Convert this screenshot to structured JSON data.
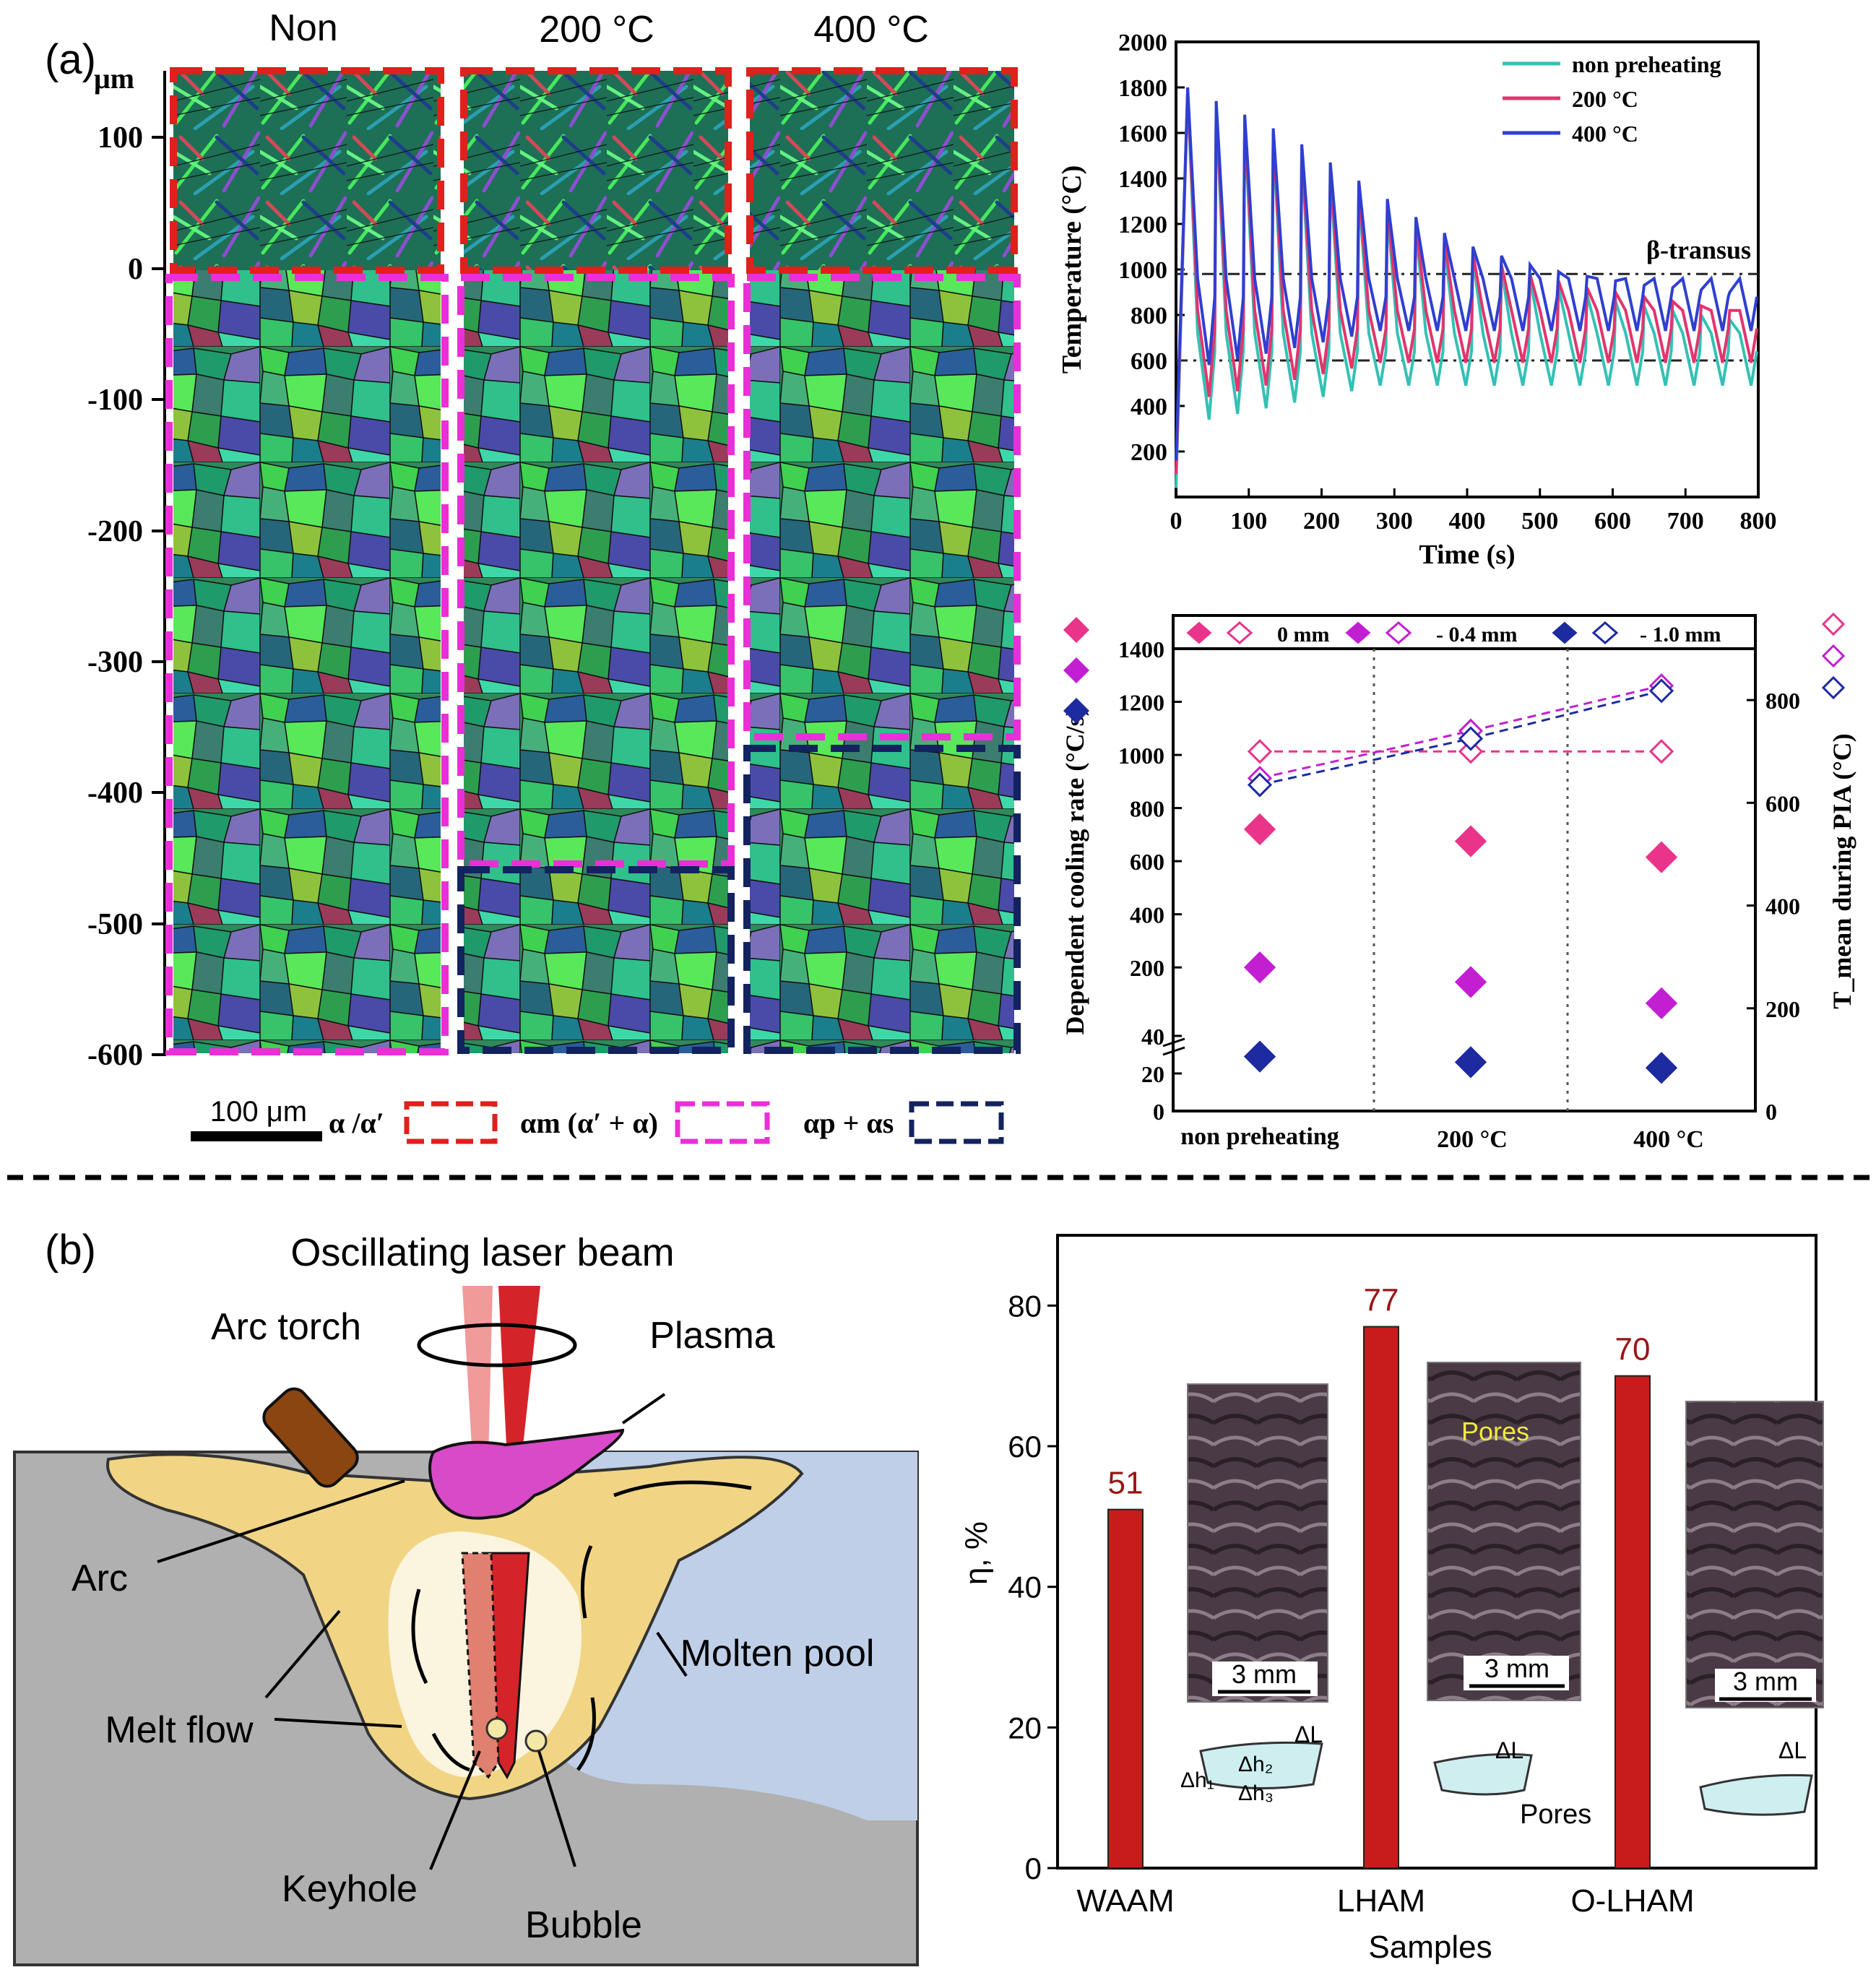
{
  "panel_a": {
    "label": "(a)",
    "micro": {
      "col_labels": [
        "Non",
        "200 °C",
        "400 °C"
      ],
      "axis_unit": "μm",
      "y_ticks": [
        "100",
        "0",
        "-100",
        "-200",
        "-300",
        "-400",
        "-500",
        "-600"
      ],
      "scale_bar": "100 μm",
      "legend": [
        {
          "label": "α /α′",
          "color": "#e0201c"
        },
        {
          "label": "αm (α′ + α)",
          "color": "#ea2fd6"
        },
        {
          "label": "αp + αs",
          "color": "#13235f"
        }
      ],
      "colors": {
        "grain_a": "#1f9a6a",
        "grain_b": "#3fd14f",
        "grain_c": "#2a5d9a",
        "grain_d": "#7a6fb8"
      }
    }
  },
  "panel_b": {
    "label": "(b)",
    "schematic": {
      "title": "Oscillating laser beam",
      "labels": {
        "arc_torch": "Arc torch",
        "plasma": "Plasma",
        "arc": "Arc",
        "melt_flow": "Melt flow",
        "molten_pool": "Molten pool",
        "keyhole": "Keyhole",
        "bubble": "Bubble"
      }
    },
    "insets": {
      "scale": "3 mm",
      "pores": "Pores",
      "pores_label": "Pores",
      "dh1": "Δh₁",
      "dh2": "Δh₂",
      "dh3": "Δh₃",
      "dl": "ΔL"
    }
  },
  "chart_data": [
    {
      "type": "line",
      "title": "",
      "xlabel": "Time (s)",
      "ylabel": "Temperature (°C)",
      "xlim": [
        0,
        800
      ],
      "ylim": [
        0,
        2000
      ],
      "x_ticks": [
        0,
        100,
        200,
        300,
        400,
        500,
        600,
        700,
        800
      ],
      "y_ticks": [
        200,
        400,
        600,
        800,
        1000,
        1200,
        1400,
        1600,
        1800,
        2000
      ],
      "annotation": "β-transus",
      "ref_lines": [
        980,
        600
      ],
      "legend": "top-right",
      "series": [
        {
          "name": "non preheating",
          "color": "#33c1b4",
          "peaks": [
            1780,
            1700,
            1640,
            1580,
            1500,
            1420,
            1340,
            1260,
            1180,
            1110,
            1050,
            1000,
            960,
            920,
            890,
            860,
            840,
            820,
            800,
            780
          ],
          "base": 250,
          "mid": 600
        },
        {
          "name": "200 °C",
          "color": "#e3346d",
          "peaks": [
            1790,
            1720,
            1660,
            1600,
            1520,
            1440,
            1360,
            1280,
            1200,
            1130,
            1070,
            1020,
            980,
            950,
            920,
            900,
            880,
            860,
            840,
            820
          ],
          "base": 400,
          "mid": 700
        },
        {
          "name": "400 °C",
          "color": "#2f3fd0",
          "peaks": [
            1800,
            1740,
            1680,
            1620,
            1550,
            1470,
            1390,
            1310,
            1230,
            1160,
            1100,
            1060,
            1020,
            990,
            970,
            950,
            930,
            920,
            910,
            900
          ],
          "base": 560,
          "mid": 840
        }
      ]
    },
    {
      "type": "scatter",
      "title": "",
      "categories": [
        "non preheating",
        "200 °C",
        "400 °C"
      ],
      "ylabel": "Dependent cooling rate (°C/s)",
      "y2label": "T_mean during PIA (°C)",
      "y_ticks": [
        "0",
        "20",
        "40",
        "200",
        "400",
        "600",
        "800",
        "1000",
        "1200",
        "1400"
      ],
      "y2_ticks": [
        "0",
        "200",
        "400",
        "600",
        "800"
      ],
      "legend_items": [
        "0 mm",
        "- 0.4 mm",
        "- 1.0 mm"
      ],
      "series": [
        {
          "name": "0 mm",
          "color": "#e9348a",
          "cooling_rate": [
            720,
            675,
            615
          ],
          "T_mean": [
            700,
            700,
            700
          ]
        },
        {
          "name": "- 0.4 mm",
          "color": "#c21fd2",
          "cooling_rate": [
            200,
            145,
            65
          ],
          "T_mean": [
            648,
            740,
            828
          ]
        },
        {
          "name": "- 1.0 mm",
          "color": "#1d2aa0",
          "cooling_rate": [
            29,
            26,
            23
          ],
          "T_mean": [
            635,
            725,
            818
          ]
        }
      ]
    },
    {
      "type": "bar",
      "title": "",
      "categories": [
        "WAAM",
        "LHAM",
        "O-LHAM"
      ],
      "values": [
        51,
        77,
        70
      ],
      "value_labels": [
        "51",
        "77",
        "70"
      ],
      "xlabel": "Samples",
      "ylabel": "η, %",
      "ylim": [
        0,
        90
      ],
      "y_ticks": [
        0,
        20,
        40,
        60,
        80
      ],
      "bar_color": "#c81c1c"
    }
  ]
}
